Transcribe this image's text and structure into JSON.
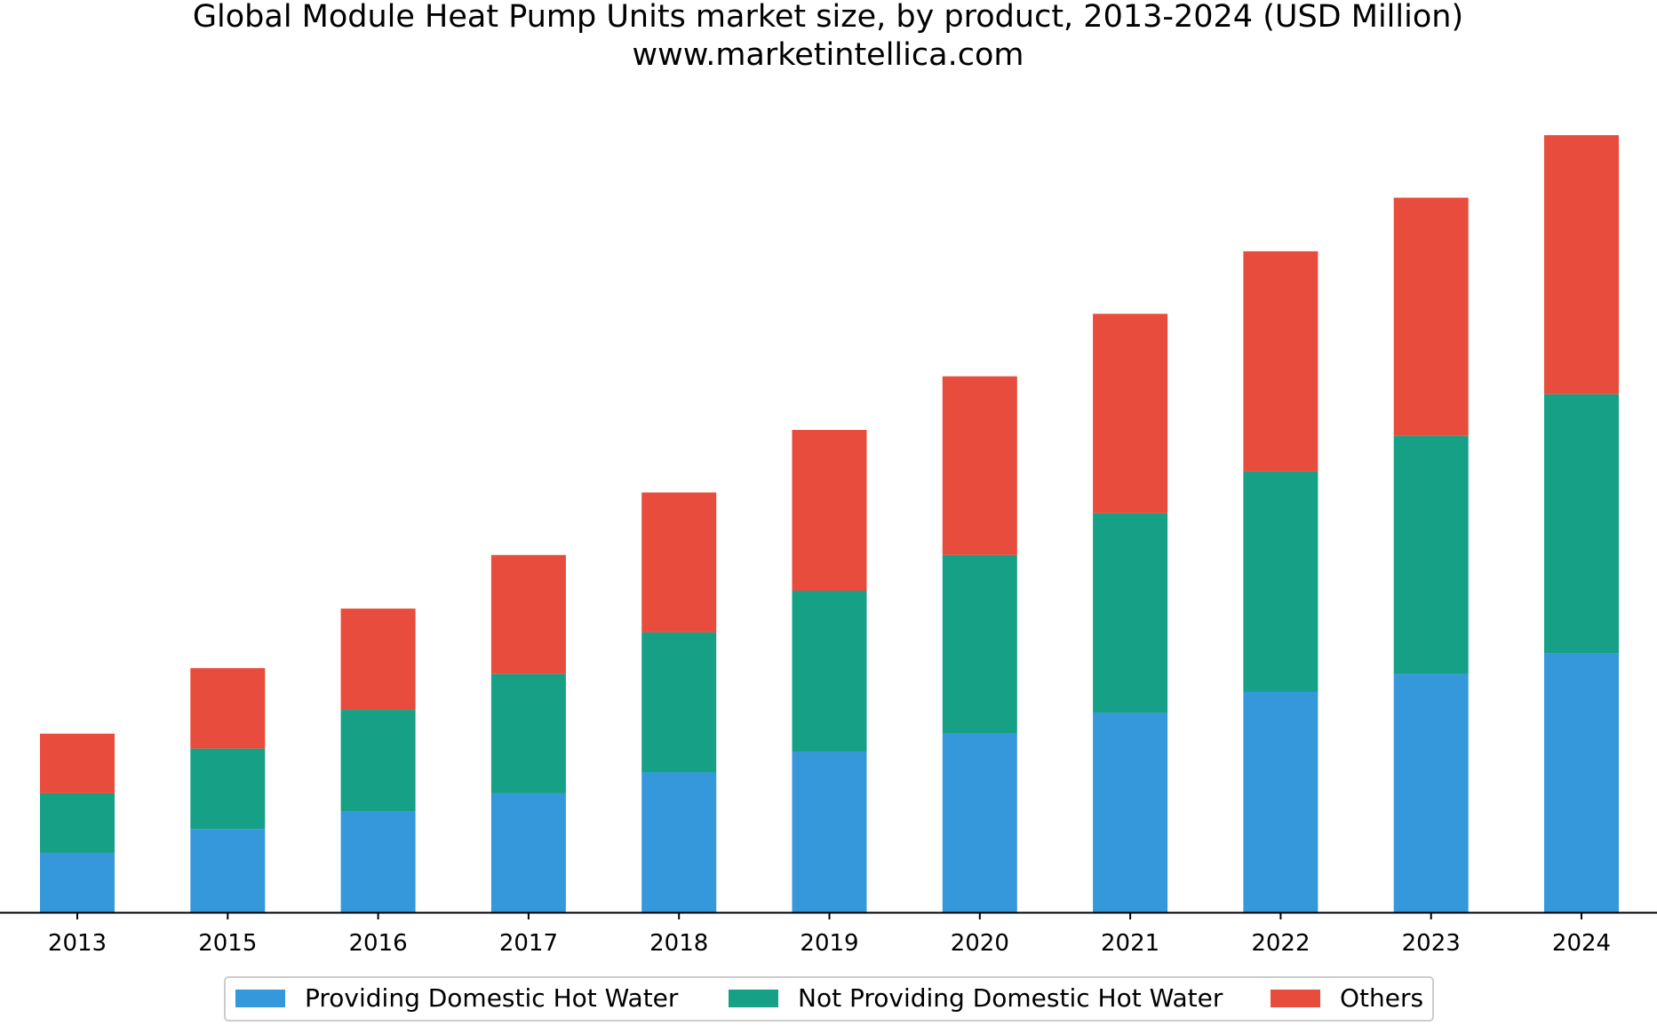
{
  "chart_data": {
    "type": "bar",
    "stacked": true,
    "title": "Global Module Heat Pump Units market size, by product, 2013-2024 (USD Million)",
    "subtitle": "www.marketintellica.com",
    "xlabel": "",
    "ylabel": "",
    "y_axis_visible": false,
    "grid": false,
    "legend_position": "bottom-center",
    "ylim": [
      0,
      13.5
    ],
    "categories": [
      "2013",
      "2015",
      "2016",
      "2017",
      "2018",
      "2019",
      "2020",
      "2021",
      "2022",
      "2023",
      "2024"
    ],
    "series": [
      {
        "name": "Providing Domestic Hot Water",
        "color": "#3498db",
        "values": [
          1.0,
          1.4,
          1.7,
          2.0,
          2.35,
          2.7,
          3.0,
          3.35,
          3.7,
          4.0,
          4.35
        ]
      },
      {
        "name": "Not Providing Domestic Hot Water",
        "color": "#16a085",
        "values": [
          1.0,
          1.35,
          1.7,
          2.0,
          2.35,
          2.7,
          3.0,
          3.35,
          3.7,
          4.0,
          4.35
        ]
      },
      {
        "name": "Others",
        "color": "#e74c3c",
        "values": [
          1.0,
          1.35,
          1.7,
          2.0,
          2.35,
          2.7,
          3.0,
          3.35,
          3.7,
          4.0,
          4.35
        ]
      }
    ]
  }
}
